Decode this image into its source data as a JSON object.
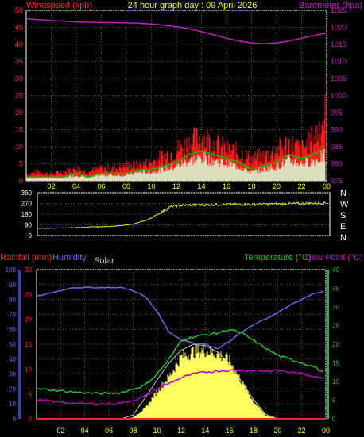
{
  "title": "24 hour graph day : 09 April 2026",
  "colors": {
    "wind": "#ff1a1a",
    "gust": "#ff1a1a",
    "wind_avg": "#00c000",
    "wind_light": "#d6ffd6",
    "baro": "#c020c0",
    "dir": "#e8e800",
    "rain": "#ff2020",
    "humidity": "#6a6ae8",
    "solar": "#ffff60",
    "solar_line": "#c8c8c8",
    "temperature": "#20c020",
    "dewpoint": "#c000c0",
    "axis_yellow": "#ffff00",
    "grid": "#505050"
  },
  "chart_data": [
    {
      "type": "line",
      "title": "24 hour graph day : 09 April 2026",
      "x_hours": [
        0,
        1,
        2,
        3,
        4,
        5,
        6,
        7,
        8,
        9,
        10,
        11,
        12,
        13,
        14,
        15,
        16,
        17,
        18,
        19,
        20,
        21,
        22,
        23,
        24
      ],
      "xtick_labels": [
        "02",
        "04",
        "06",
        "08",
        "10",
        "12",
        "14",
        "16",
        "18",
        "20",
        "22",
        "00"
      ],
      "left_axis": {
        "label": "Windspeed (kph)",
        "range": [
          0,
          50
        ],
        "ticks": [
          0,
          5,
          10,
          15,
          20,
          25,
          30,
          35,
          40,
          45,
          50
        ]
      },
      "right_axis": {
        "label": "Barometer (hpa)",
        "range": [
          975,
          1025
        ],
        "ticks": [
          975,
          980,
          985,
          990,
          995,
          1000,
          1005,
          1010,
          1015,
          1020,
          1025
        ]
      },
      "series": [
        {
          "name": "Windspeed (kph)",
          "role": "gust_max",
          "values": [
            2,
            3,
            2,
            3,
            4,
            3,
            4,
            4,
            5,
            5,
            6,
            8,
            10,
            12,
            14,
            12,
            10,
            9,
            7,
            8,
            10,
            12,
            10,
            14,
            22
          ]
        },
        {
          "name": "Windspeed (kph)",
          "role": "average",
          "values": [
            1,
            1,
            1,
            1,
            2,
            1,
            2,
            2,
            2,
            3,
            3,
            4,
            5,
            7,
            8,
            7,
            6,
            5,
            3,
            4,
            5,
            7,
            6,
            7,
            9
          ]
        },
        {
          "name": "Barometer (hpa)",
          "values": [
            1022.5,
            1022.3,
            1022.0,
            1021.8,
            1021.6,
            1021.5,
            1021.4,
            1021.4,
            1021.3,
            1021.2,
            1021.0,
            1020.6,
            1020.2,
            1019.6,
            1018.8,
            1017.8,
            1016.8,
            1016.0,
            1015.4,
            1015.2,
            1015.4,
            1016.0,
            1016.8,
            1017.6,
            1018.4
          ]
        }
      ],
      "grid": true
    },
    {
      "type": "line",
      "left_axis": {
        "range": [
          0,
          360
        ],
        "ticks": [
          0,
          90,
          180,
          270,
          360
        ]
      },
      "right_labels": [
        "N",
        "W",
        "S",
        "E",
        "N"
      ],
      "series": [
        {
          "name": "Wind direction",
          "values": [
            60,
            62,
            64,
            66,
            70,
            74,
            78,
            84,
            100,
            130,
            185,
            245,
            255,
            258,
            260,
            262,
            262,
            262,
            263,
            264,
            266,
            268,
            270,
            272,
            275
          ]
        }
      ],
      "grid": true
    },
    {
      "type": "line",
      "axis_labels": {
        "rain": "Rainfall (mm)",
        "humidity": "Humidity",
        "solar": "Solar",
        "temperature": "Temperature (°C)",
        "dewpoint": "Dew Point (°C)"
      },
      "humidity_axis": {
        "range": [
          0,
          100
        ],
        "ticks": [
          0,
          10,
          20,
          30,
          40,
          50,
          60,
          70,
          80,
          90,
          100
        ]
      },
      "rain_axis": {
        "range": [
          0,
          30
        ],
        "ticks": [
          0,
          5,
          10,
          15,
          20,
          25,
          30
        ]
      },
      "temp_axis": {
        "range": [
          0,
          40
        ],
        "ticks": [
          0,
          5,
          10,
          15,
          20,
          25,
          30,
          35,
          40
        ]
      },
      "series": [
        {
          "name": "Humidity",
          "values": [
            82,
            84,
            86,
            88,
            88,
            88,
            88,
            88,
            86,
            82,
            72,
            58,
            53,
            51,
            50,
            47,
            52,
            58,
            63,
            67,
            71,
            76,
            80,
            84,
            86
          ]
        },
        {
          "name": "Temperature (°C)",
          "values": [
            8,
            7.8,
            7.5,
            7.2,
            7,
            6.8,
            6.8,
            7,
            8,
            9,
            12,
            16,
            21,
            22,
            22.5,
            23,
            24,
            23,
            21,
            19,
            17,
            16,
            15,
            14,
            12
          ]
        },
        {
          "name": "Dew Point (°C)",
          "values": [
            5,
            4.8,
            4.5,
            4.2,
            4,
            4,
            4,
            4.2,
            5,
            6,
            8,
            9.5,
            11,
            12,
            12.5,
            12.8,
            13,
            13,
            13,
            12.8,
            13,
            12.5,
            12,
            11.5,
            10.5
          ]
        },
        {
          "name": "Solar",
          "values": [
            0,
            0,
            0,
            0,
            0,
            0,
            0,
            0,
            0.02,
            0.15,
            0.4,
            0.62,
            0.9,
            0.98,
            1.0,
            0.95,
            0.85,
            0.55,
            0.25,
            0.05,
            0,
            0,
            0,
            0,
            0
          ]
        },
        {
          "name": "Solar theoretical",
          "values": [
            0,
            0,
            0,
            0,
            0,
            0,
            0,
            0,
            0.05,
            0.28,
            0.52,
            0.75,
            0.92,
            1.0,
            0.98,
            0.9,
            0.74,
            0.5,
            0.26,
            0.06,
            0,
            0,
            0,
            0,
            0
          ]
        },
        {
          "name": "Rainfall (mm)",
          "values": [
            0,
            0,
            0,
            0,
            0,
            0,
            0,
            0,
            0,
            0,
            0,
            0,
            0,
            0,
            0,
            0,
            0,
            0,
            0,
            0,
            0,
            0,
            0,
            0,
            0
          ]
        }
      ],
      "grid": true
    }
  ]
}
